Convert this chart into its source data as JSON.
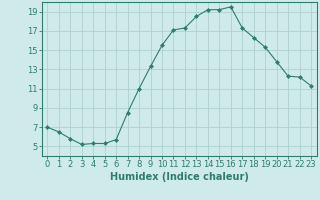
{
  "x": [
    0,
    1,
    2,
    3,
    4,
    5,
    6,
    7,
    8,
    9,
    10,
    11,
    12,
    13,
    14,
    15,
    16,
    17,
    18,
    19,
    20,
    21,
    22,
    23
  ],
  "y": [
    7,
    6.5,
    5.8,
    5.2,
    5.3,
    5.3,
    5.7,
    8.5,
    11.0,
    13.3,
    15.5,
    17.1,
    17.3,
    18.5,
    19.2,
    19.2,
    19.5,
    17.3,
    16.3,
    15.3,
    13.8,
    12.3,
    12.2,
    11.3
  ],
  "line_color": "#2e7d6e",
  "marker": "D",
  "marker_size": 2,
  "bg_color": "#ceeaea",
  "grid_color": "#aed0d0",
  "xlabel": "Humidex (Indice chaleur)",
  "ylim": [
    4,
    20
  ],
  "xlim": [
    -0.5,
    23.5
  ],
  "yticks": [
    5,
    7,
    9,
    11,
    13,
    15,
    17,
    19
  ],
  "xticks": [
    0,
    1,
    2,
    3,
    4,
    5,
    6,
    7,
    8,
    9,
    10,
    11,
    12,
    13,
    14,
    15,
    16,
    17,
    18,
    19,
    20,
    21,
    22,
    23
  ],
  "tick_label_fontsize": 6,
  "xlabel_fontsize": 7
}
